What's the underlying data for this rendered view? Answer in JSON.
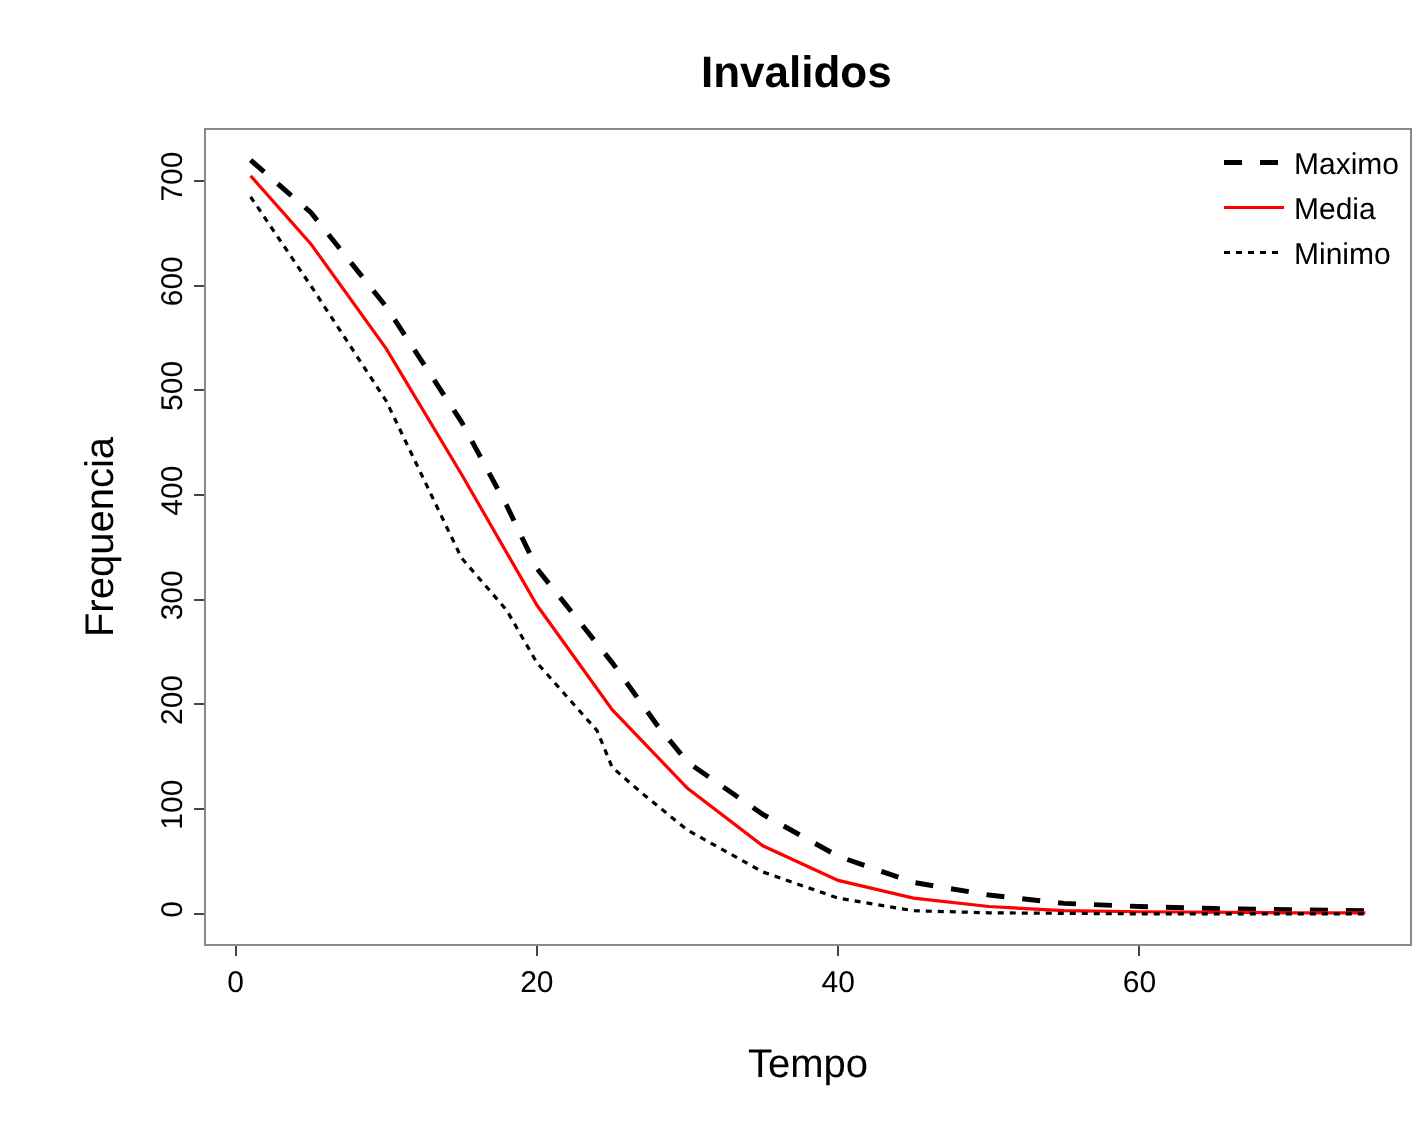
{
  "chart_data": {
    "type": "line",
    "title": "Invalidos",
    "xlabel": "Tempo",
    "ylabel": "Frequencia",
    "xlim": [
      -1.96,
      77.96
    ],
    "ylim": [
      -28.8,
      748.8
    ],
    "xticks": [
      0,
      20,
      40,
      60
    ],
    "yticks": [
      0,
      100,
      200,
      300,
      400,
      500,
      600,
      700
    ],
    "legend": "top right",
    "marker": "none",
    "series": [
      {
        "name": "Maximo",
        "color": "#000000",
        "line_style": "dashed",
        "x": [
          1,
          5,
          10,
          15,
          18,
          20,
          25,
          28,
          30,
          35,
          40,
          45,
          50,
          55,
          60,
          65,
          70,
          75
        ],
        "values": [
          720,
          670,
          580,
          470,
          390,
          330,
          240,
          180,
          145,
          95,
          55,
          30,
          18,
          10,
          7,
          5,
          4,
          3
        ]
      },
      {
        "name": "Media",
        "color": "#ff0000",
        "line_style": "solid",
        "x": [
          1,
          5,
          10,
          15,
          20,
          25,
          30,
          35,
          40,
          45,
          50,
          55,
          60,
          70,
          75
        ],
        "values": [
          705,
          640,
          540,
          420,
          295,
          195,
          120,
          65,
          32,
          15,
          7,
          3,
          2,
          1,
          1
        ]
      },
      {
        "name": "Minimo",
        "color": "#000000",
        "line_style": "dotted",
        "x": [
          1,
          5,
          10,
          15,
          18,
          20,
          24,
          25,
          27,
          30,
          35,
          40,
          45,
          50,
          60,
          75
        ],
        "values": [
          685,
          600,
          490,
          340,
          290,
          240,
          175,
          140,
          115,
          80,
          40,
          15,
          3,
          1,
          0,
          0
        ]
      }
    ]
  }
}
